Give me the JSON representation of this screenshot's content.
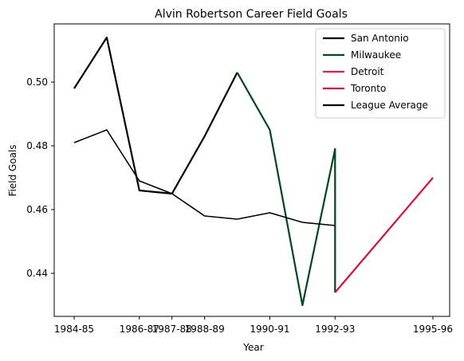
{
  "chart_data": {
    "type": "line",
    "title": "Alvin Robertson Career Field Goals",
    "xlabel": "Year",
    "ylabel": "Field Goals",
    "x_tick_labels": [
      "1984-85",
      "1986-87",
      "1987-88",
      "1988-89",
      "1990-91",
      "1992-93",
      "1995-96"
    ],
    "y_ticks": [
      "0.44",
      "0.46",
      "0.48",
      "0.50"
    ],
    "legend_position": "top-right",
    "grid": false,
    "series": [
      {
        "name": "San Antonio",
        "color": "#000000",
        "points": [
          [
            "1984-85",
            0.498
          ],
          [
            "1985-86",
            0.514
          ],
          [
            "1986-87",
            0.466
          ],
          [
            "1987-88",
            0.465
          ],
          [
            "1988-89",
            0.483
          ],
          [
            "1989-90",
            0.503
          ]
        ]
      },
      {
        "name": "Milwaukee",
        "color": "#00471B",
        "points": [
          [
            "1989-90",
            0.503
          ],
          [
            "1990-91",
            0.485
          ],
          [
            "1991-92",
            0.43
          ],
          [
            "1992-93",
            0.479
          ],
          [
            "1992-93",
            0.434
          ]
        ]
      },
      {
        "name": "Detroit",
        "color": "#E0204F",
        "points": [
          [
            "1992-93",
            0.434
          ]
        ]
      },
      {
        "name": "Toronto",
        "color": "#CE1141",
        "points": [
          [
            "1992-93",
            0.434
          ],
          [
            "1995-96",
            0.47
          ]
        ]
      },
      {
        "name": "League Average",
        "color": "#000000",
        "points": [
          [
            "1984-85",
            0.481
          ],
          [
            "1985-86",
            0.485
          ],
          [
            "1986-87",
            0.469
          ],
          [
            "1987-88",
            0.465
          ],
          [
            "1988-89",
            0.458
          ],
          [
            "1989-90",
            0.457
          ],
          [
            "1990-91",
            0.459
          ],
          [
            "1991-92",
            0.456
          ],
          [
            "1992-93",
            0.455
          ]
        ]
      }
    ]
  }
}
